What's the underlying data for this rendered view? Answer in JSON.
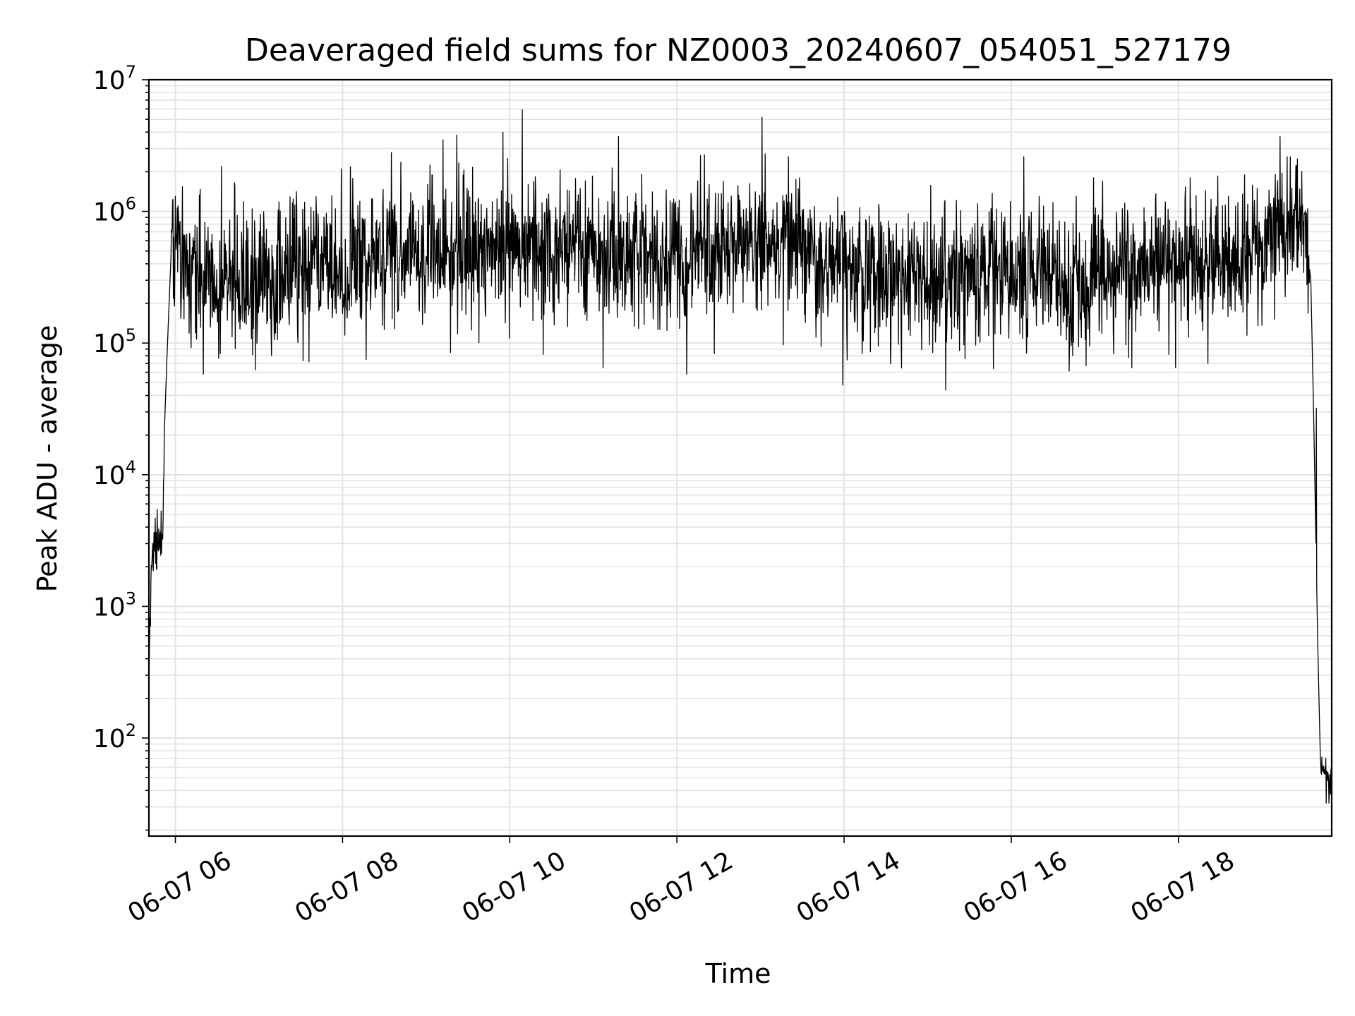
{
  "chart_data": {
    "type": "line",
    "title": "Deaveraged field sums for NZ0003_20240607_054051_527179",
    "xlabel": "Time",
    "ylabel": "Peak ADU - average",
    "x_scale": "time",
    "y_scale": "log",
    "xlim": [
      "2024-06-07T05:41:00",
      "2024-06-07T19:50:00"
    ],
    "ylim": [
      18,
      10000000
    ],
    "x_ticks": [
      {
        "time": "2024-06-07T06:00:00",
        "label": "06-07 06"
      },
      {
        "time": "2024-06-07T08:00:00",
        "label": "06-07 08"
      },
      {
        "time": "2024-06-07T10:00:00",
        "label": "06-07 10"
      },
      {
        "time": "2024-06-07T12:00:00",
        "label": "06-07 12"
      },
      {
        "time": "2024-06-07T14:00:00",
        "label": "06-07 14"
      },
      {
        "time": "2024-06-07T16:00:00",
        "label": "06-07 16"
      },
      {
        "time": "2024-06-07T18:00:00",
        "label": "06-07 18"
      }
    ],
    "y_ticks": [
      {
        "value": 100,
        "base": "10",
        "exp": "2"
      },
      {
        "value": 1000,
        "base": "10",
        "exp": "3"
      },
      {
        "value": 10000,
        "base": "10",
        "exp": "4"
      },
      {
        "value": 100000,
        "base": "10",
        "exp": "5"
      },
      {
        "value": 1000000,
        "base": "10",
        "exp": "6"
      },
      {
        "value": 10000000,
        "base": "10",
        "exp": "7"
      }
    ],
    "grid": true,
    "legend": "none",
    "line_color": "#000000",
    "series": [
      {
        "envelope_points": [
          {
            "x": "2024-06-07T05:41:00",
            "y": 250
          },
          {
            "x": "2024-06-07T05:43:00",
            "y": 2000
          },
          {
            "x": "2024-06-07T05:44:00",
            "y": 3000
          },
          {
            "x": "2024-06-07T05:51:00",
            "y": 3000
          },
          {
            "x": "2024-06-07T05:52:00",
            "y": 20000
          },
          {
            "x": "2024-06-07T05:54:00",
            "y": 80000
          },
          {
            "x": "2024-06-07T05:57:00",
            "y": 500000
          },
          {
            "x": "2024-06-07T06:10:00",
            "y": 350000
          },
          {
            "x": "2024-06-07T07:00:00",
            "y": 300000
          },
          {
            "x": "2024-06-07T08:00:00",
            "y": 400000
          },
          {
            "x": "2024-06-07T09:00:00",
            "y": 500000
          },
          {
            "x": "2024-06-07T10:00:00",
            "y": 550000
          },
          {
            "x": "2024-06-07T11:00:00",
            "y": 500000
          },
          {
            "x": "2024-06-07T11:30:00",
            "y": 400000
          },
          {
            "x": "2024-06-07T12:30:00",
            "y": 500000
          },
          {
            "x": "2024-06-07T13:00:00",
            "y": 600000
          },
          {
            "x": "2024-06-07T14:00:00",
            "y": 350000
          },
          {
            "x": "2024-06-07T15:00:00",
            "y": 300000
          },
          {
            "x": "2024-06-07T16:00:00",
            "y": 350000
          },
          {
            "x": "2024-06-07T17:00:00",
            "y": 300000
          },
          {
            "x": "2024-06-07T18:00:00",
            "y": 400000
          },
          {
            "x": "2024-06-07T19:00:00",
            "y": 500000
          },
          {
            "x": "2024-06-07T19:15:00",
            "y": 1000000
          },
          {
            "x": "2024-06-07T19:30:00",
            "y": 900000
          },
          {
            "x": "2024-06-07T19:35:00",
            "y": 300000
          },
          {
            "x": "2024-06-07T19:37:00",
            "y": 30000
          },
          {
            "x": "2024-06-07T19:40:00",
            "y": 500
          },
          {
            "x": "2024-06-07T19:42:00",
            "y": 60
          },
          {
            "x": "2024-06-07T19:50:00",
            "y": 50
          }
        ],
        "noise_start": "2024-06-07T05:57:00",
        "noise_end": "2024-06-07T19:34:00",
        "spikes": [
          {
            "x": "2024-06-07T05:58:00",
            "y": 1200000
          },
          {
            "x": "2024-06-07T06:33:00",
            "y": 2200000
          },
          {
            "x": "2024-06-07T07:59:00",
            "y": 2100000
          },
          {
            "x": "2024-06-07T08:35:00",
            "y": 2800000
          },
          {
            "x": "2024-06-07T09:12:00",
            "y": 3500000
          },
          {
            "x": "2024-06-07T09:22:00",
            "y": 3800000
          },
          {
            "x": "2024-06-07T09:55:00",
            "y": 4000000
          },
          {
            "x": "2024-06-07T10:09:00",
            "y": 5900000
          },
          {
            "x": "2024-06-07T11:18:00",
            "y": 3700000
          },
          {
            "x": "2024-06-07T13:01:00",
            "y": 5200000
          },
          {
            "x": "2024-06-07T13:20:00",
            "y": 2600000
          },
          {
            "x": "2024-06-07T16:09:00",
            "y": 2600000
          },
          {
            "x": "2024-06-07T19:13:00",
            "y": 3700000
          },
          {
            "x": "2024-06-07T19:18:00",
            "y": 2600000
          },
          {
            "x": "2024-06-07T12:07:00",
            "y": 58000
          },
          {
            "x": "2024-06-07T13:59:00",
            "y": 48000
          },
          {
            "x": "2024-06-07T15:13:00",
            "y": 44000
          },
          {
            "x": "2024-06-07T06:20:00",
            "y": 58000
          },
          {
            "x": "2024-06-07T07:36:00",
            "y": 72000
          },
          {
            "x": "2024-06-07T08:17:00",
            "y": 75000
          },
          {
            "x": "2024-06-07T10:24:00",
            "y": 82000
          },
          {
            "x": "2024-06-07T11:07:00",
            "y": 65000
          },
          {
            "x": "2024-06-07T17:58:00",
            "y": 65000
          },
          {
            "x": "2024-06-07T18:21:00",
            "y": 70000
          },
          {
            "x": "2024-06-07T19:39:00",
            "y": 32000
          },
          {
            "x": "2024-06-07T19:46:00",
            "y": 32
          },
          {
            "x": "2024-06-07T19:48:00",
            "y": 32
          }
        ]
      }
    ]
  }
}
